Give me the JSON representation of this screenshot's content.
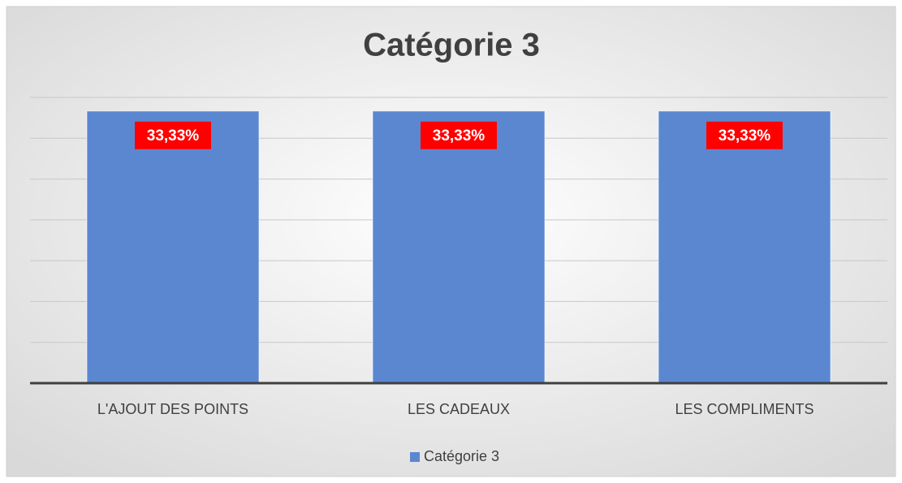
{
  "chart_data": {
    "type": "bar",
    "title": "Catégorie 3",
    "categories": [
      "L'AJOUT DES POINTS",
      "LES CADEAUX",
      "LES COMPLIMENTS"
    ],
    "series": [
      {
        "name": "Catégorie 3",
        "color": "#5b87d1",
        "values": [
          33.33,
          33.33,
          33.33
        ],
        "value_labels": [
          "33,33%",
          "33,33%",
          "33,33%"
        ]
      }
    ],
    "value_label_color": "#ff0000",
    "ylim": [
      0,
      35
    ],
    "yticks": [
      0,
      5,
      10,
      15,
      20,
      25,
      30,
      35
    ],
    "grid": true,
    "legend": "bottom"
  }
}
